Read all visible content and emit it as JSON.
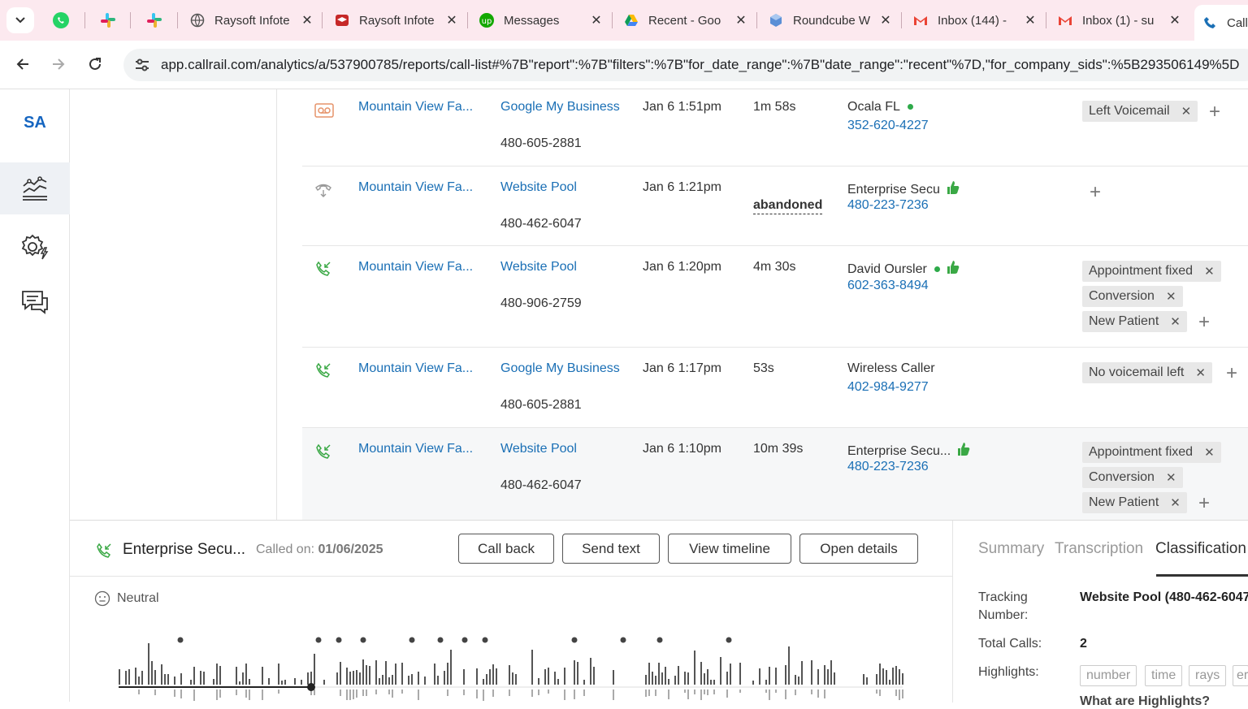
{
  "browser": {
    "tabs": [
      {
        "title": "Raysoft Infote",
        "icon": "globe-icon"
      },
      {
        "title": "Raysoft Infote",
        "icon": "graduation-cap-icon"
      },
      {
        "title": "Messages",
        "icon": "upwork-icon"
      },
      {
        "title": "Recent - Goo",
        "icon": "google-drive-icon"
      },
      {
        "title": "Roundcube W",
        "icon": "roundcube-icon"
      },
      {
        "title": "Inbox (144) -",
        "icon": "gmail-icon"
      },
      {
        "title": "Inbox (1) - su",
        "icon": "gmail-icon"
      },
      {
        "title": "Call",
        "icon": "phone-icon"
      }
    ],
    "url": "app.callrail.com/analytics/a/537900785/reports/call-list#%7B\"report\":%7B\"filters\":%7B\"for_date_range\":%7B\"date_range\":\"recent\"%7D,\"for_company_sids\":%5B293506149%5D"
  },
  "nav": {
    "logo": "SA",
    "items": [
      "analytics-icon",
      "settings-bolt-icon",
      "chat-icon"
    ]
  },
  "calls": [
    {
      "type": "voicemail",
      "company": "Mountain View Fa...",
      "source": "Google My Business",
      "tracking": "480-605-2881",
      "time": "Jan 6 1:51pm",
      "duration": "1m 58s",
      "caller": "Ocala FL",
      "dot": true,
      "thumb": false,
      "phone": "352-620-4227",
      "tags": [
        "Left Voicemail"
      ]
    },
    {
      "type": "abandoned",
      "company": "Mountain View Fa...",
      "source": "Website Pool",
      "tracking": "480-462-6047",
      "time": "Jan 6 1:21pm",
      "duration": "abandoned",
      "caller": "Enterprise Secu",
      "dot": false,
      "thumb": true,
      "phone": "480-223-7236",
      "tags": []
    },
    {
      "type": "inbound",
      "company": "Mountain View Fa...",
      "source": "Website Pool",
      "tracking": "480-906-2759",
      "time": "Jan 6 1:20pm",
      "duration": "4m 30s",
      "caller": "David Oursler",
      "dot": true,
      "thumb": true,
      "phone": "602-363-8494",
      "tags": [
        "Appointment fixed",
        "Conversion",
        "New Patient"
      ]
    },
    {
      "type": "inbound",
      "company": "Mountain View Fa...",
      "source": "Google My Business",
      "tracking": "480-605-2881",
      "time": "Jan 6 1:17pm",
      "duration": "53s",
      "caller": "Wireless Caller",
      "dot": false,
      "thumb": false,
      "phone": "402-984-9277",
      "tags": [
        "No voicemail left"
      ]
    },
    {
      "type": "inbound",
      "company": "Mountain View Fa...",
      "source": "Website Pool",
      "tracking": "480-462-6047",
      "time": "Jan 6 1:10pm",
      "duration": "10m 39s",
      "caller": "Enterprise Secu...",
      "dot": false,
      "thumb": true,
      "phone": "480-223-7236",
      "tags": [
        "Appointment fixed",
        "Conversion",
        "New Patient"
      ]
    }
  ],
  "panel": {
    "caller": "Enterprise Secu...",
    "called_on_label": "Called on:",
    "called_on_date": "01/06/2025",
    "buttons": [
      "Call back",
      "Send text",
      "View timeline",
      "Open details"
    ],
    "sentiment": "Neutral",
    "tabs": [
      "Summary",
      "Transcription",
      "Classification"
    ],
    "active_tab": "Classification",
    "tracking_number_label": "Tracking Number:",
    "tracking_number_value": "Website Pool (480-462-6047",
    "total_calls_label": "Total Calls:",
    "total_calls_value": "2",
    "highlights_label": "Highlights:",
    "highlight_chips": [
      "number",
      "time",
      "rays",
      "er"
    ],
    "what_are_highlights": "What are Highlights?"
  },
  "colors": {
    "link": "#1a6fb5",
    "green": "#2eaa4a",
    "tabstrip": "#fce9ef"
  }
}
